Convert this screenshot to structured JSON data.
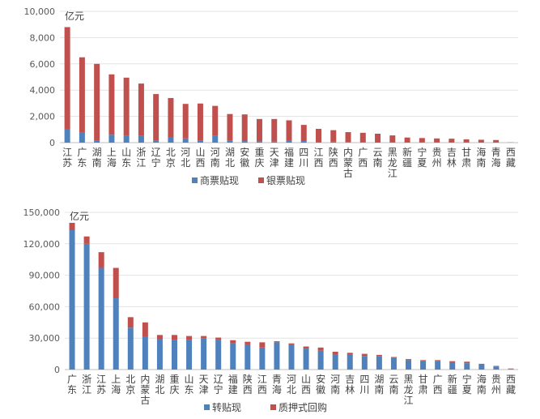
{
  "chart_data": [
    {
      "type": "bar",
      "stacked": true,
      "unit_label": "亿元",
      "categories": [
        "江苏",
        "广东",
        "湖南",
        "上海",
        "山东",
        "浙江",
        "辽宁",
        "北京",
        "河北",
        "山西",
        "河南",
        "湖北",
        "安徽",
        "重庆",
        "天津",
        "福建",
        "四川",
        "江西",
        "陕西",
        "内蒙古",
        "广西",
        "云南",
        "黑龙江",
        "新疆",
        "宁夏",
        "贵州",
        "吉林",
        "甘肃",
        "海南",
        "青海",
        "西藏"
      ],
      "series": [
        {
          "name": "商票贴现",
          "color": "#4f81bd",
          "values": [
            1050,
            800,
            160,
            600,
            550,
            550,
            180,
            400,
            320,
            180,
            550,
            180,
            120,
            100,
            80,
            150,
            120,
            60,
            70,
            50,
            40,
            30,
            20,
            20,
            15,
            15,
            15,
            15,
            10,
            10,
            5
          ]
        },
        {
          "name": "银票贴现",
          "color": "#c0504d",
          "values": [
            7750,
            5700,
            5840,
            4600,
            4400,
            3950,
            3520,
            3000,
            2630,
            2800,
            2250,
            2000,
            2030,
            1700,
            1720,
            1550,
            1230,
            990,
            880,
            750,
            710,
            650,
            530,
            370,
            335,
            305,
            285,
            235,
            210,
            190,
            15
          ]
        }
      ],
      "ylim": [
        0,
        10000
      ],
      "yticks": [
        "0",
        "2,000",
        "4,000",
        "6,000",
        "8,000",
        "10,000"
      ],
      "grid": true,
      "legend": "bottom"
    },
    {
      "type": "bar",
      "stacked": true,
      "unit_label": "亿元",
      "categories": [
        "广东",
        "浙江",
        "江苏",
        "上海",
        "北京",
        "内蒙古",
        "湖北",
        "重庆",
        "山东",
        "天津",
        "辽宁",
        "福建",
        "陕西",
        "江西",
        "青海",
        "河北",
        "山西",
        "安徽",
        "河南",
        "吉林",
        "四川",
        "湖南",
        "云南",
        "黑龙江",
        "甘肃",
        "广西",
        "新疆",
        "宁夏",
        "海南",
        "贵州",
        "西藏"
      ],
      "series": [
        {
          "name": "转贴现",
          "color": "#4f81bd",
          "values": [
            133000,
            120000,
            97000,
            68000,
            40000,
            31000,
            29000,
            28000,
            28000,
            30000,
            28000,
            25000,
            24000,
            21000,
            26000,
            24000,
            20000,
            18000,
            14000,
            14000,
            13000,
            13000,
            11000,
            9000,
            8000,
            8000,
            7000,
            6000,
            5000,
            3000,
            500
          ]
        },
        {
          "name": "质押式回购",
          "color": "#c0504d",
          "values": [
            7000,
            7000,
            15000,
            29000,
            10000,
            14000,
            4000,
            5000,
            4000,
            2000,
            2500,
            3000,
            2500,
            5000,
            1000,
            1000,
            2000,
            3000,
            3000,
            2000,
            2000,
            1000,
            1000,
            1000,
            1000,
            1000,
            1000,
            1500,
            500,
            500,
            500
          ]
        }
      ],
      "ylim": [
        0,
        150000
      ],
      "yticks": [
        "0",
        "30,000",
        "60,000",
        "90,000",
        "120,000",
        "150,000"
      ],
      "grid": true,
      "legend": "bottom"
    }
  ]
}
